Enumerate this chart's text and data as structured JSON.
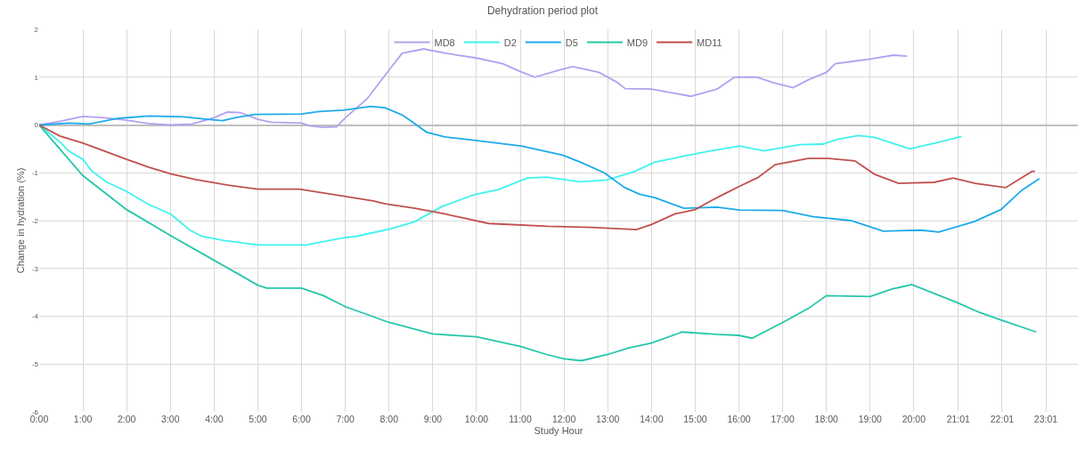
{
  "chart_data": {
    "type": "line",
    "title": "Dehydration period plot",
    "xlabel": "Study Hour",
    "ylabel": "Change in hydration (%)",
    "xlim": [
      0,
      23.75
    ],
    "ylim": [
      -6,
      2
    ],
    "yticks": [
      -6,
      -5,
      -4,
      -3,
      -2,
      -1,
      0,
      1,
      2
    ],
    "xticks": [
      {
        "value": 0,
        "label": "0:00"
      },
      {
        "value": 1,
        "label": "1:00"
      },
      {
        "value": 2,
        "label": "2:00"
      },
      {
        "value": 3,
        "label": "3:00"
      },
      {
        "value": 4,
        "label": "4:00"
      },
      {
        "value": 5,
        "label": "5:00"
      },
      {
        "value": 6,
        "label": "6:00"
      },
      {
        "value": 7,
        "label": "7:00"
      },
      {
        "value": 8,
        "label": "8:00"
      },
      {
        "value": 9,
        "label": "9:00"
      },
      {
        "value": 10,
        "label": "10:00"
      },
      {
        "value": 11,
        "label": "11:00"
      },
      {
        "value": 12,
        "label": "12:00"
      },
      {
        "value": 13,
        "label": "13:00"
      },
      {
        "value": 14,
        "label": "14:00"
      },
      {
        "value": 15,
        "label": "15:00"
      },
      {
        "value": 16,
        "label": "16:00"
      },
      {
        "value": 17,
        "label": "17:00"
      },
      {
        "value": 18,
        "label": "18:00"
      },
      {
        "value": 19,
        "label": "19:00"
      },
      {
        "value": 20,
        "label": "20:00"
      },
      {
        "value": 21.017,
        "label": "21:01"
      },
      {
        "value": 22.017,
        "label": "22:01"
      },
      {
        "value": 23.017,
        "label": "23:01"
      }
    ],
    "grid": true,
    "legend": "top",
    "marker": "none",
    "line_style": "solid",
    "series": [
      {
        "name": "MD8",
        "color": "#b4a0f0",
        "x": [
          0,
          0.5,
          1,
          1.5,
          2,
          2.5,
          3,
          3.5,
          4,
          4.3,
          4.6,
          5,
          5.3,
          6,
          6.2,
          6.5,
          6.8,
          7,
          7.5,
          8,
          8.3,
          8.79,
          9.3,
          10,
          10.6,
          11,
          11.33,
          11.9,
          12.2,
          12.8,
          13.2,
          13.4,
          14,
          14.3,
          14.9,
          15.5,
          15.9,
          16.4,
          16.8,
          17.24,
          17.6,
          18,
          18.2,
          18.6,
          19,
          19.54,
          19.85
        ],
        "values": [
          0,
          0.08,
          0.18,
          0.15,
          0.1,
          0.03,
          0,
          0.02,
          0.15,
          0.27,
          0.26,
          0.12,
          0.06,
          0.04,
          -0.02,
          -0.05,
          -0.04,
          0.15,
          0.55,
          1.15,
          1.5,
          1.59,
          1.5,
          1.4,
          1.28,
          1.12,
          1.0,
          1.15,
          1.22,
          1.1,
          0.9,
          0.76,
          0.75,
          0.7,
          0.6,
          0.75,
          1.0,
          1.0,
          0.88,
          0.78,
          0.95,
          1.1,
          1.28,
          1.33,
          1.38,
          1.46,
          1.44
        ]
      },
      {
        "name": "D2",
        "color": "#3ff2ee",
        "x": [
          0,
          0.47,
          0.67,
          1,
          1.2,
          1.55,
          2,
          2.5,
          3,
          3.45,
          3.72,
          4.26,
          5,
          6.1,
          6.95,
          7.24,
          8.05,
          8.59,
          9.2,
          9.94,
          10.5,
          11.16,
          11.6,
          12.37,
          12.97,
          13.6,
          14.07,
          14.7,
          15.35,
          16.02,
          16.57,
          17.38,
          17.92,
          18.25,
          18.73,
          19.1,
          19.91,
          20.48,
          21.09
        ],
        "values": [
          0,
          -0.35,
          -0.54,
          -0.72,
          -0.96,
          -1.2,
          -1.39,
          -1.66,
          -1.86,
          -2.2,
          -2.33,
          -2.42,
          -2.51,
          -2.51,
          -2.36,
          -2.33,
          -2.17,
          -2.02,
          -1.71,
          -1.46,
          -1.35,
          -1.11,
          -1.09,
          -1.19,
          -1.15,
          -0.98,
          -0.78,
          -0.66,
          -0.54,
          -0.44,
          -0.54,
          -0.41,
          -0.4,
          -0.3,
          -0.22,
          -0.26,
          -0.5,
          -0.38,
          -0.24
        ]
      },
      {
        "name": "D5",
        "color": "#1eaaea",
        "x": [
          0,
          0.67,
          1.14,
          1.82,
          2.5,
          3.31,
          3.85,
          4.19,
          4.53,
          4.93,
          6,
          6.4,
          6.95,
          7.58,
          7.91,
          8.32,
          8.86,
          9.27,
          9.94,
          11.02,
          11.97,
          12.38,
          12.92,
          13.39,
          13.73,
          14.07,
          14.74,
          15.5,
          16.02,
          17,
          17.7,
          18.56,
          19.3,
          20.16,
          20.57,
          21.38,
          21.99,
          22.46,
          22.87
        ],
        "values": [
          0,
          0.04,
          0.02,
          0.14,
          0.19,
          0.17,
          0.12,
          0.09,
          0.16,
          0.22,
          0.23,
          0.28,
          0.31,
          0.39,
          0.36,
          0.2,
          -0.15,
          -0.25,
          -0.32,
          -0.44,
          -0.63,
          -0.78,
          -1.0,
          -1.31,
          -1.45,
          -1.52,
          -1.74,
          -1.72,
          -1.78,
          -1.79,
          -1.92,
          -2.0,
          -2.22,
          -2.2,
          -2.24,
          -2.02,
          -1.77,
          -1.37,
          -1.12
        ]
      },
      {
        "name": "MD9",
        "color": "#26c6aa",
        "x": [
          0,
          1,
          2,
          3,
          4,
          5,
          5.2,
          6,
          6.5,
          7,
          8,
          9,
          10,
          11,
          11.6,
          12,
          12.4,
          13,
          13.5,
          14,
          14.7,
          15.5,
          16,
          16.3,
          17,
          17.6,
          18,
          18.5,
          19,
          19.5,
          19.95,
          20.4,
          21,
          21.5,
          22,
          22.8
        ],
        "values": [
          0,
          -1.06,
          -1.77,
          -2.31,
          -2.83,
          -3.35,
          -3.41,
          -3.41,
          -3.57,
          -3.8,
          -4.13,
          -4.37,
          -4.43,
          -4.63,
          -4.8,
          -4.89,
          -4.93,
          -4.8,
          -4.66,
          -4.56,
          -4.33,
          -4.38,
          -4.4,
          -4.46,
          -4.13,
          -3.83,
          -3.57,
          -3.58,
          -3.59,
          -3.43,
          -3.34,
          -3.5,
          -3.72,
          -3.92,
          -4.08,
          -4.33
        ]
      },
      {
        "name": "MD11",
        "color": "#c0504d",
        "x": [
          0,
          0.47,
          1,
          1.48,
          2,
          2.5,
          3,
          3.58,
          4.26,
          5,
          5.95,
          6.56,
          7.64,
          7.91,
          8.59,
          9.27,
          10.28,
          11.63,
          12.64,
          13.66,
          14,
          14.54,
          15,
          15.35,
          15.69,
          16.02,
          16.43,
          16.83,
          17.58,
          18.05,
          18.65,
          19.1,
          19.65,
          20.46,
          20.9,
          21.4,
          22.1,
          22.7,
          22.77
        ],
        "values": [
          0,
          -0.23,
          -0.38,
          -0.54,
          -0.72,
          -0.88,
          -1.02,
          -1.14,
          -1.25,
          -1.34,
          -1.34,
          -1.43,
          -1.59,
          -1.65,
          -1.74,
          -1.86,
          -2.06,
          -2.12,
          -2.14,
          -2.19,
          -2.08,
          -1.86,
          -1.77,
          -1.59,
          -1.43,
          -1.28,
          -1.1,
          -0.83,
          -0.7,
          -0.7,
          -0.75,
          -1.03,
          -1.22,
          -1.2,
          -1.11,
          -1.22,
          -1.31,
          -0.97,
          -0.97
        ]
      }
    ]
  }
}
